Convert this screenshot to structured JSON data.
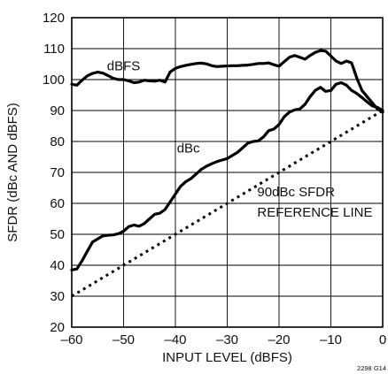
{
  "chart_data": {
    "type": "line",
    "title": "",
    "xlabel": "INPUT LEVEL (dBFS)",
    "ylabel": "SFDR (dBc AND dBFS)",
    "xlim": [
      -60,
      0
    ],
    "ylim": [
      20,
      120
    ],
    "x_ticks": [
      -60,
      -50,
      -40,
      -30,
      -20,
      -10,
      0
    ],
    "x_tick_labels": [
      "–60",
      "–50",
      "–40",
      "–30",
      "–20",
      "–10",
      "0"
    ],
    "y_ticks": [
      20,
      30,
      40,
      50,
      60,
      70,
      80,
      90,
      100,
      110,
      120
    ],
    "y_tick_labels": [
      "20",
      "30",
      "40",
      "50",
      "60",
      "70",
      "80",
      "90",
      "100",
      "110",
      "120"
    ],
    "grid": true,
    "series": [
      {
        "name": "dBFS",
        "style": "solid",
        "color": "#000000",
        "x": [
          -60,
          -59,
          -58,
          -57,
          -56,
          -55,
          -54,
          -53,
          -52,
          -51,
          -50,
          -49,
          -48,
          -47,
          -46,
          -45,
          -44,
          -43,
          -42,
          -41,
          -40,
          -39,
          -38,
          -37,
          -36,
          -35,
          -34,
          -33,
          -32,
          -31,
          -30,
          -29,
          -28,
          -27,
          -26,
          -25,
          -24,
          -23,
          -22,
          -21,
          -20,
          -19,
          -18,
          -17,
          -16,
          -15,
          -14,
          -13,
          -12,
          -11,
          -10,
          -9,
          -8,
          -7,
          -6,
          -5,
          -4,
          -3,
          -2,
          -1,
          0
        ],
        "y": [
          98.5,
          98.2,
          99.8,
          101.2,
          102.0,
          102.4,
          102.1,
          101.3,
          100.4,
          100.0,
          100.0,
          99.6,
          99.0,
          99.2,
          99.8,
          99.6,
          99.5,
          99.8,
          99.2,
          102.5,
          103.6,
          104.2,
          104.6,
          104.9,
          105.2,
          105.3,
          105.1,
          104.5,
          104.2,
          104.3,
          104.4,
          104.5,
          104.5,
          104.6,
          104.7,
          104.9,
          105.2,
          105.2,
          105.4,
          104.8,
          104.3,
          105.8,
          107.2,
          107.8,
          107.2,
          106.6,
          107.8,
          108.8,
          109.4,
          109.2,
          107.6,
          106.0,
          105.2,
          106.0,
          105.4,
          100.5,
          96.5,
          94.5,
          92.5,
          90.5,
          89.5
        ]
      },
      {
        "name": "dBc",
        "style": "solid",
        "color": "#000000",
        "x": [
          -60,
          -59,
          -58,
          -57,
          -56,
          -55,
          -54,
          -53,
          -52,
          -51,
          -50,
          -49,
          -48,
          -47,
          -46,
          -45,
          -44,
          -43,
          -42,
          -41,
          -40,
          -39,
          -38,
          -37,
          -36,
          -35,
          -34,
          -33,
          -32,
          -31,
          -30,
          -29,
          -28,
          -27,
          -26,
          -25,
          -24,
          -23,
          -22,
          -21,
          -20,
          -19,
          -18,
          -17,
          -16,
          -15,
          -14,
          -13,
          -12,
          -11,
          -10,
          -9,
          -8,
          -7,
          -6,
          -5,
          -4,
          -3,
          -2,
          -1,
          0
        ],
        "y": [
          38.5,
          38.8,
          41.5,
          44.5,
          47.5,
          48.5,
          49.5,
          49.7,
          49.8,
          50.2,
          51.0,
          52.5,
          53.0,
          52.6,
          53.5,
          55.0,
          56.5,
          56.8,
          58.0,
          60.5,
          63.0,
          65.5,
          67.0,
          68.0,
          69.5,
          71.0,
          72.0,
          72.8,
          73.5,
          74.0,
          74.5,
          75.5,
          76.5,
          78.0,
          79.5,
          80.0,
          80.2,
          81.5,
          83.5,
          84.0,
          85.5,
          88.0,
          89.5,
          90.2,
          90.5,
          92.0,
          94.5,
          96.5,
          97.5,
          96.2,
          96.5,
          98.5,
          99.0,
          98.2,
          96.5,
          95.5,
          94.2,
          92.8,
          91.5,
          91.0,
          90.0
        ]
      },
      {
        "name": "90dBc SFDR REFERENCE LINE",
        "style": "dotted",
        "color": "#000000",
        "x": [
          -60,
          0
        ],
        "y": [
          30,
          90
        ]
      }
    ],
    "annotations": [
      {
        "text": "dBFS",
        "x": -50,
        "y": 103
      },
      {
        "text": "dBc",
        "x": -37.5,
        "y": 76.5
      },
      {
        "text": "90dBc SFDR",
        "x": -24.2,
        "y": 62.3
      },
      {
        "text": "REFERENCE LINE",
        "x": -24.2,
        "y": 55.7
      }
    ],
    "figure_id": "2298 G14"
  }
}
